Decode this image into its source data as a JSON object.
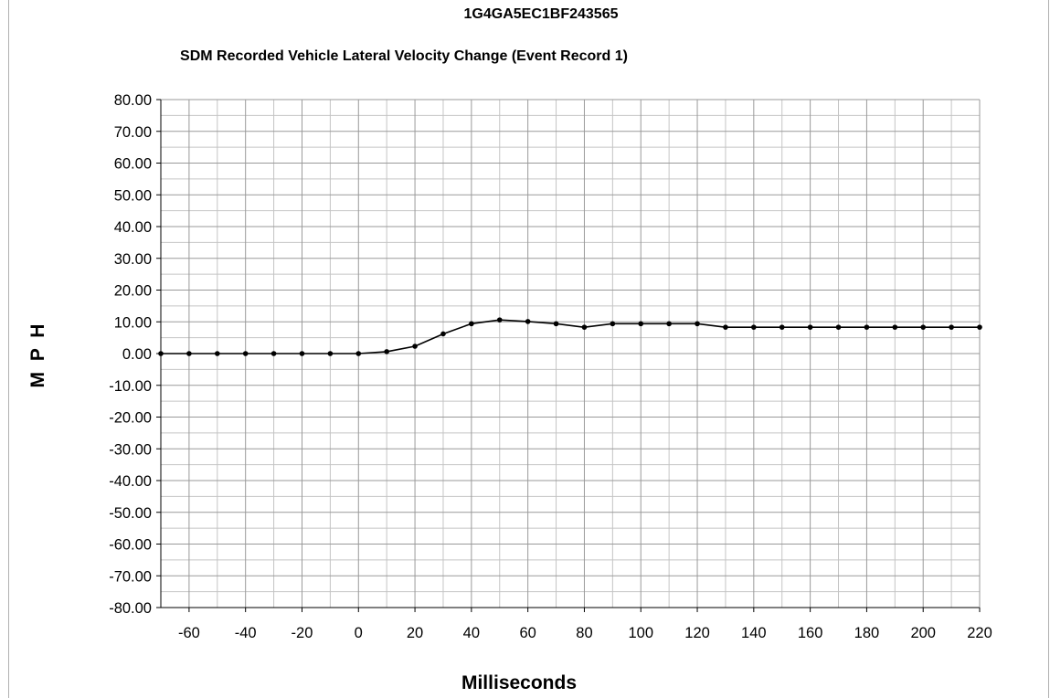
{
  "chart_data": {
    "type": "line",
    "title": "1G4GA5EC1BF243565",
    "subtitle": "SDM Recorded Vehicle Lateral Velocity Change (Event Record 1)",
    "xlabel": "Milliseconds",
    "ylabel": "M P H",
    "xlim": [
      -70,
      220
    ],
    "ylim": [
      -80,
      80
    ],
    "x_ticks": [
      -60,
      -40,
      -20,
      0,
      20,
      40,
      60,
      80,
      100,
      120,
      140,
      160,
      180,
      200,
      220
    ],
    "y_ticks": [
      "80.00",
      "70.00",
      "60.00",
      "50.00",
      "40.00",
      "30.00",
      "20.00",
      "10.00",
      "0.00",
      "-10.00",
      "-20.00",
      "-30.00",
      "-40.00",
      "-50.00",
      "-60.00",
      "-70.00",
      "-80.00"
    ],
    "grid": true,
    "legend": "none",
    "series": [
      {
        "color": "#000000",
        "x": [
          -70,
          -60,
          -50,
          -40,
          -30,
          -20,
          -10,
          0,
          10,
          20,
          30,
          40,
          50,
          60,
          70,
          80,
          90,
          100,
          110,
          120,
          130,
          140,
          150,
          160,
          170,
          180,
          190,
          200,
          210,
          220
        ],
        "y": [
          0,
          0,
          0,
          0,
          0,
          0,
          0,
          0,
          0.6,
          2.3,
          6.2,
          9.4,
          10.6,
          10.1,
          9.4,
          8.3,
          9.4,
          9.4,
          9.4,
          9.4,
          8.3,
          8.3,
          8.3,
          8.3,
          8.3,
          8.3,
          8.3,
          8.3,
          8.3,
          8.3
        ]
      }
    ]
  }
}
